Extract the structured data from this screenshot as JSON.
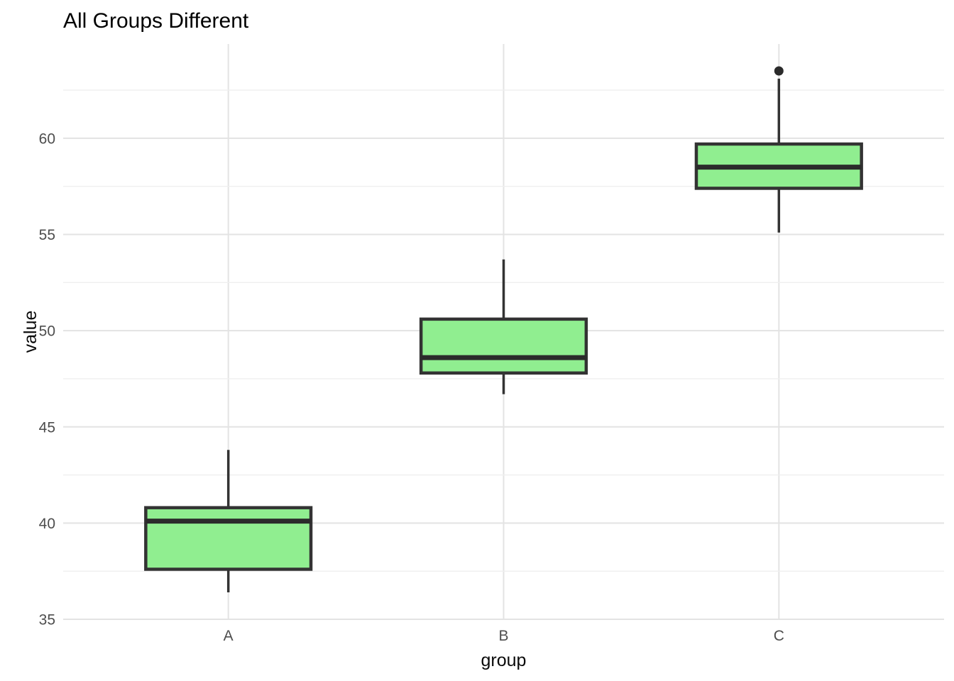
{
  "title": "All Groups Different",
  "chart_data": {
    "type": "boxplot",
    "title": "All Groups Different",
    "xlabel": "group",
    "ylabel": "value",
    "categories": [
      "A",
      "B",
      "C"
    ],
    "ylim": [
      35,
      64.9
    ],
    "yticks": [
      35,
      40,
      45,
      50,
      55,
      60
    ],
    "yticks_minor": [
      37.5,
      42.5,
      47.5,
      52.5,
      57.5,
      62.5
    ],
    "legend": "none",
    "grid": "horizontal major+minor; vertical major at each category",
    "series": [
      {
        "category": "A",
        "whisker_low": 36.4,
        "q1": 37.6,
        "median": 40.1,
        "q3": 40.8,
        "whisker_high": 43.8,
        "outliers": []
      },
      {
        "category": "B",
        "whisker_low": 46.7,
        "q1": 47.8,
        "median": 48.6,
        "q3": 50.6,
        "whisker_high": 53.7,
        "outliers": []
      },
      {
        "category": "C",
        "whisker_low": 55.1,
        "q1": 57.4,
        "median": 58.5,
        "q3": 59.7,
        "whisker_high": 63.1,
        "outliers": [
          63.5
        ]
      }
    ],
    "colors": {
      "box_fill": "#90EE90",
      "box_stroke": "#333333",
      "median_stroke": "#2b2b2b",
      "whisker_stroke": "#333333",
      "outlier_fill": "#2b2b2b",
      "grid_major": "#e3e3e3",
      "grid_minor": "#efefef",
      "tick_text": "#4d4d4d",
      "title_text": "#000000"
    }
  }
}
